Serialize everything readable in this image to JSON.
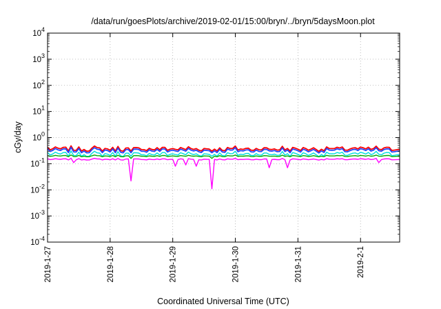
{
  "chart_data": {
    "type": "line",
    "title": "/data/run/goesPlots/archive/2019-02-01/15:00/bryn/../bryn/5daysMoon.plot",
    "xlabel": "Coordinated Universal Time (UTC)",
    "ylabel": "cGy/day",
    "y_scale": "log",
    "ylim": [
      0.0001,
      10000
    ],
    "y_ticks": [
      {
        "base": "10",
        "exp": "4",
        "value": 10000
      },
      {
        "base": "10",
        "exp": "3",
        "value": 1000
      },
      {
        "base": "10",
        "exp": "2",
        "value": 100
      },
      {
        "base": "10",
        "exp": "1",
        "value": 10
      },
      {
        "base": "10",
        "exp": "0",
        "value": 1
      },
      {
        "base": "10",
        "exp": "-1",
        "value": 0.1
      },
      {
        "base": "10",
        "exp": "-2",
        "value": 0.01
      },
      {
        "base": "10",
        "exp": "-3",
        "value": 0.001
      },
      {
        "base": "10",
        "exp": "-4",
        "value": 0.0001
      }
    ],
    "xlim": [
      "2019-01-27 00:00",
      "2019-02-01 15:00"
    ],
    "x_ticks": [
      "2019-1-27",
      "2019-1-28",
      "2019-1-29",
      "2019-1-30",
      "2019-1-31",
      "2019-2-1"
    ],
    "grid": true,
    "legend": "none",
    "series": [
      {
        "color": "#ff0000",
        "base_value": 0.38,
        "values_note": ""
      },
      {
        "color": "#2244ff",
        "base_value": 0.33
      },
      {
        "color": "#00dddd",
        "base_value": 0.24
      },
      {
        "color": "#00aa00",
        "base_value": 0.2
      },
      {
        "color": "#ff00ff",
        "base_value": 0.15,
        "dips": [
          {
            "time": "2019-01-27 09:30",
            "value": 0.11
          },
          {
            "time": "2019-01-28 08:00",
            "value": 0.022
          },
          {
            "time": "2019-01-29 01:00",
            "value": 0.08
          },
          {
            "time": "2019-01-29 04:30",
            "value": 0.09
          },
          {
            "time": "2019-01-29 09:00",
            "value": 0.08
          },
          {
            "time": "2019-01-29 15:00",
            "value": 0.011
          },
          {
            "time": "2019-01-30 12:30",
            "value": 0.07
          },
          {
            "time": "2019-01-30 20:00",
            "value": 0.07
          },
          {
            "time": "2019-02-01 06:30",
            "value": 0.11
          }
        ]
      }
    ]
  }
}
